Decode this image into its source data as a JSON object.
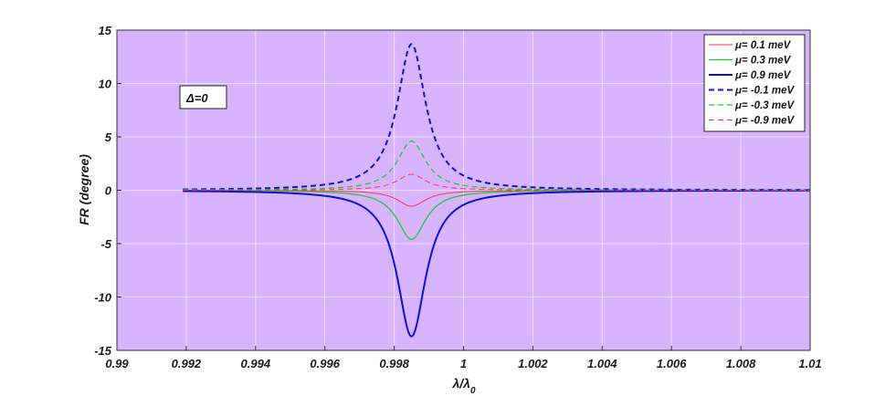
{
  "chart_data": {
    "type": "line",
    "xlabel_main": "λ/λ",
    "xlabel_sub": "0",
    "ylabel": "FR (degree)",
    "xlim": [
      0.99,
      1.01
    ],
    "ylim": [
      -15,
      15
    ],
    "grid": true,
    "background": "#d8b4fe",
    "legend_position": "top-right",
    "annotation": "Δ=0",
    "x_ticks": [
      "0.99",
      "0.992",
      "0.994",
      "0.996",
      "0.998",
      "1",
      "1.002",
      "1.004",
      "1.006",
      "1.008",
      "1.01"
    ],
    "y_ticks": [
      "-15",
      "-10",
      "-5",
      "0",
      "5",
      "10",
      "15"
    ],
    "x_tick_values": [
      0.99,
      0.992,
      0.994,
      0.996,
      0.998,
      1.0,
      1.002,
      1.004,
      1.006,
      1.008,
      1.01
    ],
    "y_tick_values": [
      -15,
      -10,
      -5,
      0,
      5,
      10,
      15
    ],
    "x_range": [
      0.9919,
      1.01
    ],
    "peak_x": 0.9985,
    "series": [
      {
        "name": "μ= 0.1 meV",
        "peak": -1.5,
        "hwhm": 0.0005,
        "color": "#ff3355",
        "dash": "solid",
        "width": 1
      },
      {
        "name": "μ= 0.3 meV",
        "peak": -4.6,
        "hwhm": 0.0005,
        "color": "#22cc22",
        "dash": "solid",
        "width": 1.3
      },
      {
        "name": "μ= 0.9 meV",
        "peak": -13.7,
        "hwhm": 0.0005,
        "color": "#1010dd",
        "dash": "solid",
        "width": 2
      },
      {
        "name": "μ= -0.1 meV",
        "peak": 13.7,
        "hwhm": 0.0005,
        "color": "#1010dd",
        "dash": "dashed",
        "width": 2
      },
      {
        "name": "μ= -0.3 meV",
        "peak": 4.6,
        "hwhm": 0.0005,
        "color": "#22cc22",
        "dash": "dashed",
        "width": 1.3
      },
      {
        "name": "μ= -0.9 meV",
        "peak": 1.5,
        "hwhm": 0.0005,
        "color": "#ff3355",
        "dash": "dashed",
        "width": 1
      }
    ]
  }
}
